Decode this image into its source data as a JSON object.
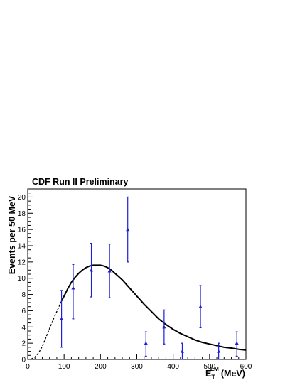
{
  "chart_data": {
    "type": "scatter",
    "title": "CDF Run II Preliminary",
    "xlabel": {
      "main": "E",
      "sub": "T",
      "sup": "EM",
      "unit": "(MeV)"
    },
    "ylabel": "Events per 50 MeV",
    "xlim": [
      0,
      600
    ],
    "ylim": [
      0,
      21
    ],
    "xticks": [
      0,
      100,
      200,
      300,
      400,
      500,
      600
    ],
    "yticks": [
      0,
      2,
      4,
      6,
      8,
      10,
      12,
      14,
      16,
      18,
      20
    ],
    "legend": "none",
    "grid": false,
    "series": [
      {
        "kind": "points_with_errors",
        "color": "#1f1fd6",
        "x": [
          93,
          125,
          175,
          225,
          275,
          325,
          375,
          425,
          475,
          525,
          575
        ],
        "y": [
          5,
          8.8,
          11,
          10.9,
          16,
          2,
          4,
          1,
          6.5,
          1,
          2
        ],
        "err_low": [
          3.5,
          3.8,
          3.3,
          3.3,
          4,
          1.6,
          2.1,
          1,
          2.6,
          1,
          1.6
        ],
        "err_high": [
          3.5,
          2.9,
          3.3,
          3.3,
          4,
          1.4,
          2.1,
          1,
          2.6,
          1,
          1.4
        ]
      },
      {
        "kind": "fit_curve",
        "color": "#000000",
        "x": [
          0,
          10,
          20,
          30,
          40,
          50,
          60,
          70,
          80,
          93,
          100,
          110,
          120,
          130,
          140,
          150,
          160,
          170,
          180,
          190,
          200,
          210,
          220,
          230,
          240,
          250,
          260,
          270,
          280,
          290,
          300,
          320,
          340,
          360,
          380,
          400,
          420,
          440,
          460,
          480,
          500,
          520,
          540,
          560,
          580,
          600
        ],
        "y": [
          0.0,
          0.05,
          0.3,
          0.8,
          1.6,
          2.7,
          3.8,
          4.9,
          5.9,
          7.2,
          7.8,
          8.7,
          9.5,
          10.1,
          10.6,
          11.0,
          11.3,
          11.5,
          11.6,
          11.6,
          11.6,
          11.5,
          11.3,
          11.0,
          10.6,
          10.2,
          9.8,
          9.3,
          8.8,
          8.3,
          7.8,
          6.8,
          5.9,
          5.0,
          4.3,
          3.7,
          3.2,
          2.8,
          2.4,
          2.1,
          1.9,
          1.7,
          1.5,
          1.4,
          1.25,
          1.15
        ],
        "dashed_below_x": 93
      }
    ]
  }
}
